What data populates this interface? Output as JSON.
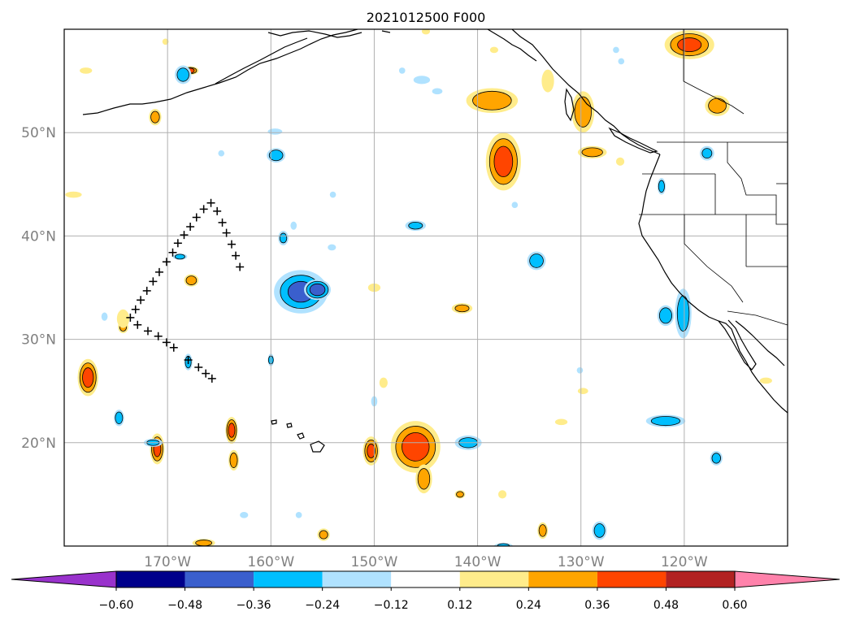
{
  "title": "2021012500 F000",
  "map": {
    "lon_range": [
      -180,
      -110
    ],
    "lat_range": [
      10,
      60
    ],
    "gridlines": true,
    "lon_ticks": [
      {
        "lon": -170,
        "label": "170°W"
      },
      {
        "lon": -160,
        "label": "160°W"
      },
      {
        "lon": -150,
        "label": "150°W"
      },
      {
        "lon": -140,
        "label": "140°W"
      },
      {
        "lon": -130,
        "label": "130°W"
      },
      {
        "lon": -120,
        "label": "120°W"
      }
    ],
    "lat_ticks": [
      {
        "lat": 20,
        "label": "20°N"
      },
      {
        "lat": 30,
        "label": "30°N"
      },
      {
        "lat": 40,
        "label": "40°N"
      },
      {
        "lat": 50,
        "label": "50°N"
      }
    ],
    "track_points": [
      [
        -165.8,
        43.2
      ],
      [
        -165.2,
        42.4
      ],
      [
        -164.7,
        41.3
      ],
      [
        -164.3,
        40.3
      ],
      [
        -163.8,
        39.2
      ],
      [
        -163.4,
        38.1
      ],
      [
        -163.0,
        37.0
      ],
      [
        -166.5,
        42.6
      ],
      [
        -167.2,
        41.8
      ],
      [
        -167.8,
        40.9
      ],
      [
        -168.4,
        40.1
      ],
      [
        -169.0,
        39.3
      ],
      [
        -169.5,
        38.4
      ],
      [
        -170.1,
        37.5
      ],
      [
        -170.8,
        36.5
      ],
      [
        -171.4,
        35.6
      ],
      [
        -172.0,
        34.7
      ],
      [
        -172.6,
        33.8
      ],
      [
        -173.1,
        32.9
      ],
      [
        -173.6,
        32.1
      ],
      [
        -172.9,
        31.4
      ],
      [
        -171.9,
        30.8
      ],
      [
        -170.9,
        30.3
      ],
      [
        -170.1,
        29.7
      ],
      [
        -169.4,
        29.2
      ],
      [
        -168.0,
        28.0
      ],
      [
        -167.0,
        27.3
      ],
      [
        -166.3,
        26.7
      ],
      [
        -165.7,
        26.2
      ]
    ],
    "anomalies": [
      {
        "lon": -177.7,
        "lat": 26.3,
        "rx": 1.0,
        "ry": 1.8,
        "value": 0.4
      },
      {
        "lon": -171.0,
        "lat": 19.4,
        "rx": 0.7,
        "ry": 1.5,
        "value": 0.38
      },
      {
        "lon": -163.8,
        "lat": 21.2,
        "rx": 0.6,
        "ry": 1.3,
        "value": 0.4
      },
      {
        "lon": -163.6,
        "lat": 18.3,
        "rx": 0.5,
        "ry": 1.0,
        "value": 0.3
      },
      {
        "lon": -167.7,
        "lat": 35.7,
        "rx": 0.7,
        "ry": 0.6,
        "value": 0.3
      },
      {
        "lon": -167.8,
        "lat": 56.0,
        "rx": 0.8,
        "ry": 0.4,
        "value": 0.36
      },
      {
        "lon": -171.2,
        "lat": 51.5,
        "rx": 0.6,
        "ry": 0.8,
        "value": 0.28
      },
      {
        "lon": -179.1,
        "lat": 44.0,
        "rx": 0.8,
        "ry": 0.3,
        "value": 0.2
      },
      {
        "lon": -177.9,
        "lat": 56.0,
        "rx": 0.6,
        "ry": 0.3,
        "value": 0.16
      },
      {
        "lon": -174.3,
        "lat": 31.2,
        "rx": 0.5,
        "ry": 0.6,
        "value": 0.26
      },
      {
        "lon": -166.5,
        "lat": 10.3,
        "rx": 1.1,
        "ry": 0.4,
        "value": 0.3
      },
      {
        "lon": -146.0,
        "lat": 19.6,
        "rx": 2.4,
        "ry": 2.5,
        "value": 0.42
      },
      {
        "lon": -150.3,
        "lat": 19.2,
        "rx": 0.8,
        "ry": 1.4,
        "value": 0.36
      },
      {
        "lon": -145.2,
        "lat": 16.5,
        "rx": 0.8,
        "ry": 1.4,
        "value": 0.3
      },
      {
        "lon": -149.1,
        "lat": 25.8,
        "rx": 0.4,
        "ry": 0.5,
        "value": 0.2
      },
      {
        "lon": -150.0,
        "lat": 35.0,
        "rx": 0.6,
        "ry": 0.4,
        "value": 0.18
      },
      {
        "lon": -154.9,
        "lat": 11.1,
        "rx": 0.6,
        "ry": 0.6,
        "value": 0.26
      },
      {
        "lon": -141.7,
        "lat": 15.0,
        "rx": 0.5,
        "ry": 0.4,
        "value": 0.28
      },
      {
        "lon": -137.6,
        "lat": 15.0,
        "rx": 0.4,
        "ry": 0.4,
        "value": 0.16
      },
      {
        "lon": -133.7,
        "lat": 11.5,
        "rx": 0.5,
        "ry": 0.8,
        "value": 0.3
      },
      {
        "lon": -131.9,
        "lat": 22.0,
        "rx": 0.6,
        "ry": 0.3,
        "value": 0.18
      },
      {
        "lon": -129.8,
        "lat": 25.0,
        "rx": 0.5,
        "ry": 0.3,
        "value": 0.22
      },
      {
        "lon": -141.5,
        "lat": 33.0,
        "rx": 1.0,
        "ry": 0.5,
        "value": 0.26
      },
      {
        "lon": -137.5,
        "lat": 47.2,
        "rx": 1.7,
        "ry": 2.8,
        "value": 0.4
      },
      {
        "lon": -138.6,
        "lat": 53.1,
        "rx": 2.5,
        "ry": 1.2,
        "value": 0.34
      },
      {
        "lon": -129.8,
        "lat": 52.0,
        "rx": 1.1,
        "ry": 2.0,
        "value": 0.32
      },
      {
        "lon": -128.9,
        "lat": 48.1,
        "rx": 1.4,
        "ry": 0.6,
        "value": 0.3
      },
      {
        "lon": -133.2,
        "lat": 55.0,
        "rx": 0.6,
        "ry": 1.1,
        "value": 0.2
      },
      {
        "lon": -138.4,
        "lat": 58.0,
        "rx": 0.4,
        "ry": 0.3,
        "value": 0.22
      },
      {
        "lon": -126.2,
        "lat": 47.2,
        "rx": 0.4,
        "ry": 0.4,
        "value": 0.2
      },
      {
        "lon": -119.5,
        "lat": 58.5,
        "rx": 2.4,
        "ry": 1.4,
        "value": 0.36
      },
      {
        "lon": -116.8,
        "lat": 52.6,
        "rx": 1.2,
        "ry": 1.0,
        "value": 0.3
      },
      {
        "lon": -112.1,
        "lat": 26.0,
        "rx": 0.6,
        "ry": 0.3,
        "value": 0.18
      },
      {
        "lon": -170.2,
        "lat": 58.8,
        "rx": 0.3,
        "ry": 0.3,
        "value": 0.16
      },
      {
        "lon": -145.0,
        "lat": 59.8,
        "rx": 0.4,
        "ry": 0.3,
        "value": 0.16
      },
      {
        "lon": -174.3,
        "lat": 32.0,
        "rx": 0.6,
        "ry": 0.9,
        "value": 0.16
      },
      {
        "lon": -157.1,
        "lat": 34.6,
        "rx": 2.6,
        "ry": 2.1,
        "value": -0.36
      },
      {
        "lon": -155.5,
        "lat": 34.8,
        "rx": 1.3,
        "ry": 1.0,
        "value": -0.44
      },
      {
        "lon": -168.0,
        "lat": 27.8,
        "rx": 0.4,
        "ry": 0.8,
        "value": -0.3
      },
      {
        "lon": -168.8,
        "lat": 38.0,
        "rx": 0.7,
        "ry": 0.3,
        "value": -0.26
      },
      {
        "lon": -174.7,
        "lat": 22.4,
        "rx": 0.5,
        "ry": 0.8,
        "value": -0.3
      },
      {
        "lon": -171.4,
        "lat": 20.0,
        "rx": 0.9,
        "ry": 0.4,
        "value": -0.26
      },
      {
        "lon": -176.1,
        "lat": 32.2,
        "rx": 0.3,
        "ry": 0.4,
        "value": -0.2
      },
      {
        "lon": -160.0,
        "lat": 28.0,
        "rx": 0.3,
        "ry": 0.6,
        "value": -0.24
      },
      {
        "lon": -158.8,
        "lat": 39.8,
        "rx": 0.5,
        "ry": 0.7,
        "value": -0.26
      },
      {
        "lon": -157.8,
        "lat": 41.0,
        "rx": 0.3,
        "ry": 0.4,
        "value": -0.2
      },
      {
        "lon": -159.5,
        "lat": 47.8,
        "rx": 0.9,
        "ry": 0.7,
        "value": -0.32
      },
      {
        "lon": -159.6,
        "lat": 50.1,
        "rx": 0.7,
        "ry": 0.3,
        "value": -0.2
      },
      {
        "lon": -164.8,
        "lat": 48.0,
        "rx": 0.3,
        "ry": 0.3,
        "value": -0.16
      },
      {
        "lon": -168.5,
        "lat": 55.6,
        "rx": 0.8,
        "ry": 0.9,
        "value": -0.3
      },
      {
        "lon": -146.0,
        "lat": 41.0,
        "rx": 1.0,
        "ry": 0.5,
        "value": -0.26
      },
      {
        "lon": -154.1,
        "lat": 38.9,
        "rx": 0.4,
        "ry": 0.3,
        "value": -0.18
      },
      {
        "lon": -154.0,
        "lat": 44.0,
        "rx": 0.3,
        "ry": 0.3,
        "value": -0.14
      },
      {
        "lon": -145.4,
        "lat": 55.1,
        "rx": 0.8,
        "ry": 0.4,
        "value": -0.22
      },
      {
        "lon": -143.9,
        "lat": 54.0,
        "rx": 0.5,
        "ry": 0.3,
        "value": -0.2
      },
      {
        "lon": -150.0,
        "lat": 24.0,
        "rx": 0.3,
        "ry": 0.5,
        "value": -0.22
      },
      {
        "lon": -136.4,
        "lat": 43.0,
        "rx": 0.3,
        "ry": 0.3,
        "value": -0.14
      },
      {
        "lon": -134.3,
        "lat": 37.6,
        "rx": 0.9,
        "ry": 0.9,
        "value": -0.32
      },
      {
        "lon": -140.9,
        "lat": 20.0,
        "rx": 1.3,
        "ry": 0.7,
        "value": -0.28
      },
      {
        "lon": -130.1,
        "lat": 27.0,
        "rx": 0.3,
        "ry": 0.3,
        "value": -0.16
      },
      {
        "lon": -128.2,
        "lat": 11.5,
        "rx": 0.7,
        "ry": 0.9,
        "value": -0.32
      },
      {
        "lon": -137.5,
        "lat": 10.0,
        "rx": 0.9,
        "ry": 0.3,
        "value": -0.24
      },
      {
        "lon": -121.8,
        "lat": 22.1,
        "rx": 1.9,
        "ry": 0.6,
        "value": -0.32
      },
      {
        "lon": -116.9,
        "lat": 18.5,
        "rx": 0.6,
        "ry": 0.7,
        "value": -0.28
      },
      {
        "lon": -121.8,
        "lat": 32.3,
        "rx": 0.8,
        "ry": 1.0,
        "value": -0.34
      },
      {
        "lon": -120.1,
        "lat": 32.5,
        "rx": 0.8,
        "ry": 2.4,
        "value": -0.3
      },
      {
        "lon": -117.8,
        "lat": 48.0,
        "rx": 0.7,
        "ry": 0.7,
        "value": -0.26
      },
      {
        "lon": -122.2,
        "lat": 44.8,
        "rx": 0.4,
        "ry": 0.8,
        "value": -0.3
      },
      {
        "lon": -162.6,
        "lat": 13.0,
        "rx": 0.4,
        "ry": 0.3,
        "value": -0.16
      },
      {
        "lon": -157.3,
        "lat": 13.0,
        "rx": 0.3,
        "ry": 0.3,
        "value": -0.14
      },
      {
        "lon": -147.3,
        "lat": 56.0,
        "rx": 0.3,
        "ry": 0.3,
        "value": -0.14
      },
      {
        "lon": -126.6,
        "lat": 58.0,
        "rx": 0.3,
        "ry": 0.3,
        "value": -0.14
      },
      {
        "lon": -126.1,
        "lat": 56.9,
        "rx": 0.3,
        "ry": 0.3,
        "value": -0.14
      }
    ],
    "colors": {
      "background": "#ffffff",
      "coast": "#000000",
      "grid": "#b0b0b0",
      "tick_label": "#808080"
    }
  },
  "colorbar": {
    "bins": [
      {
        "color": "#9932CC"
      },
      {
        "color": "#00008B"
      },
      {
        "color": "#3A5FCD"
      },
      {
        "color": "#00BFFF"
      },
      {
        "color": "#B0E2FF"
      },
      {
        "color": "#FFFFFF"
      },
      {
        "color": "#FFEC8B"
      },
      {
        "color": "#FFA500"
      },
      {
        "color": "#FF4500"
      },
      {
        "color": "#B22222"
      },
      {
        "color": "#FF82AB"
      }
    ],
    "tick_labels": [
      "−0.60",
      "−0.48",
      "−0.36",
      "−0.24",
      "−0.12",
      "0.12",
      "0.24",
      "0.36",
      "0.48",
      "0.60"
    ]
  }
}
